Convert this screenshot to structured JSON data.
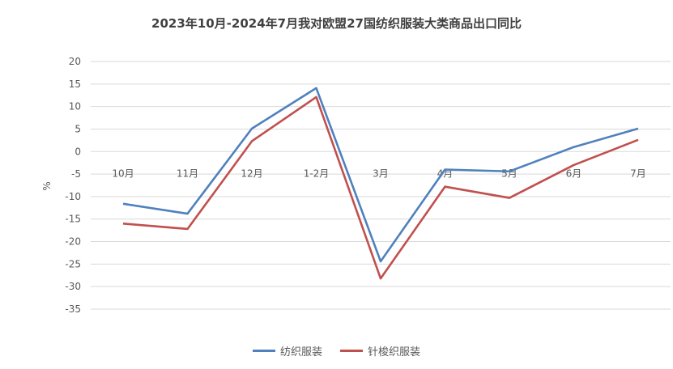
{
  "chart_data": {
    "type": "line",
    "title": "2023年10月-2024年7月我对欧盟27国纺织服装大类商品出口同比",
    "ylabel": "%",
    "xlabel": "",
    "categories": [
      "10月",
      "11月",
      "12月",
      "1-2月",
      "3月",
      "4月",
      "5月",
      "6月",
      "7月"
    ],
    "ylim": [
      -35,
      20
    ],
    "yticks": [
      20,
      15,
      10,
      5,
      0,
      -5,
      -10,
      -15,
      -20,
      -25,
      -30,
      -35
    ],
    "grid": true,
    "legend_position": "bottom",
    "series": [
      {
        "name": "纺织服装",
        "color": "#4f81bd",
        "values": [
          -11.6,
          -13.8,
          5.1,
          14.1,
          -24.4,
          -4.0,
          -4.4,
          1.0,
          5.1
        ]
      },
      {
        "name": "针梭织服装",
        "color": "#c0504d",
        "values": [
          -16.0,
          -17.2,
          2.3,
          12.1,
          -28.2,
          -7.8,
          -10.3,
          -3.0,
          2.6
        ]
      }
    ]
  }
}
